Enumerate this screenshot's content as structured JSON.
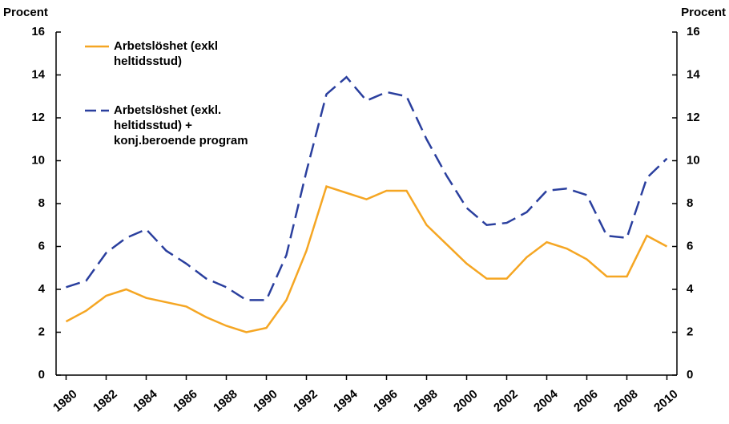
{
  "chart_data": {
    "type": "line",
    "y_label": "Procent",
    "y2_label": "Procent",
    "x": [
      1980,
      1981,
      1982,
      1983,
      1984,
      1985,
      1986,
      1987,
      1988,
      1989,
      1990,
      1991,
      1992,
      1993,
      1994,
      1995,
      1996,
      1997,
      1998,
      1999,
      2000,
      2001,
      2002,
      2003,
      2004,
      2005,
      2006,
      2007,
      2008,
      2009,
      2010
    ],
    "xlim": [
      1979.5,
      2010.5
    ],
    "xticks": [
      1980,
      1982,
      1984,
      1986,
      1988,
      1990,
      1992,
      1994,
      1996,
      1998,
      2000,
      2002,
      2004,
      2006,
      2008,
      2010
    ],
    "ylim": [
      0,
      16
    ],
    "yticks": [
      0,
      2,
      4,
      6,
      8,
      10,
      12,
      14,
      16
    ],
    "y2lim": [
      0,
      16
    ],
    "y2ticks": [
      0,
      2,
      4,
      6,
      8,
      10,
      12,
      14,
      16
    ],
    "series": [
      {
        "name": "Arbetslöshet (exkl\nheltidsstud)",
        "color": "#f5a623",
        "dash": false,
        "values": [
          2.5,
          3.0,
          3.7,
          4.0,
          3.6,
          3.4,
          3.2,
          2.7,
          2.3,
          2.0,
          2.2,
          3.5,
          5.8,
          8.8,
          8.5,
          8.2,
          8.6,
          8.6,
          7.0,
          6.1,
          5.2,
          4.5,
          4.5,
          5.5,
          6.2,
          5.9,
          5.4,
          4.6,
          4.6,
          6.5,
          6.0
        ]
      },
      {
        "name": "Arbetslöshet (exkl.\nheltidsstud) +\nkonj.beroende program",
        "color": "#2a3f9e",
        "dash": true,
        "values": [
          4.1,
          4.4,
          5.7,
          6.4,
          6.8,
          5.8,
          5.2,
          4.5,
          4.1,
          3.5,
          3.5,
          5.6,
          9.5,
          13.1,
          13.9,
          12.8,
          13.2,
          13.0,
          11.0,
          9.3,
          7.8,
          7.0,
          7.1,
          7.6,
          8.6,
          8.7,
          8.4,
          6.5,
          6.4,
          9.2,
          10.1
        ]
      }
    ]
  }
}
